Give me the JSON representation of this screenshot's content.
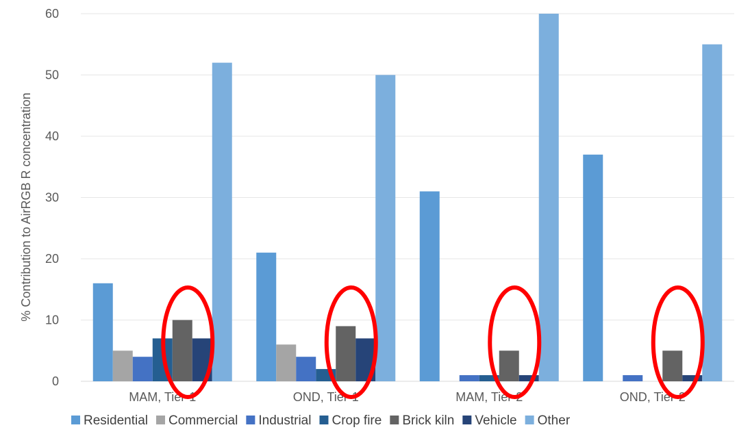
{
  "chart_data": {
    "type": "bar",
    "title": "",
    "xlabel": "",
    "ylabel": "% Contribution to AirRGB R concentration",
    "ylim": [
      0,
      60
    ],
    "yticks": [
      0,
      10,
      20,
      30,
      40,
      50,
      60
    ],
    "grid": true,
    "legend_position": "bottom",
    "categories": [
      "MAM, Tier-1",
      "OND, Tier-1",
      "MAM, Tier-2",
      "OND, Tier-2"
    ],
    "series": [
      {
        "name": "Residential",
        "color": "#5b9bd5",
        "values": [
          16,
          21,
          31,
          37
        ]
      },
      {
        "name": "Commercial",
        "color": "#a5a5a5",
        "values": [
          5,
          6,
          0,
          0
        ]
      },
      {
        "name": "Industrial",
        "color": "#4472c4",
        "values": [
          4,
          4,
          1,
          1
        ]
      },
      {
        "name": "Crop fire",
        "color": "#255e91",
        "values": [
          7,
          2,
          1,
          0
        ]
      },
      {
        "name": "Brick kiln",
        "color": "#636363",
        "values": [
          10,
          9,
          5,
          5
        ]
      },
      {
        "name": "Vehicle",
        "color": "#264478",
        "values": [
          7,
          7,
          1,
          1
        ]
      },
      {
        "name": "Other",
        "color": "#7cafdd",
        "values": [
          52,
          50,
          60,
          55
        ]
      }
    ],
    "annotations": [
      {
        "type": "ellipse",
        "color": "#ff0000",
        "target_series": "Brick kiln",
        "categories": [
          "MAM, Tier-1",
          "OND, Tier-1",
          "MAM, Tier-2",
          "OND, Tier-2"
        ]
      }
    ]
  }
}
